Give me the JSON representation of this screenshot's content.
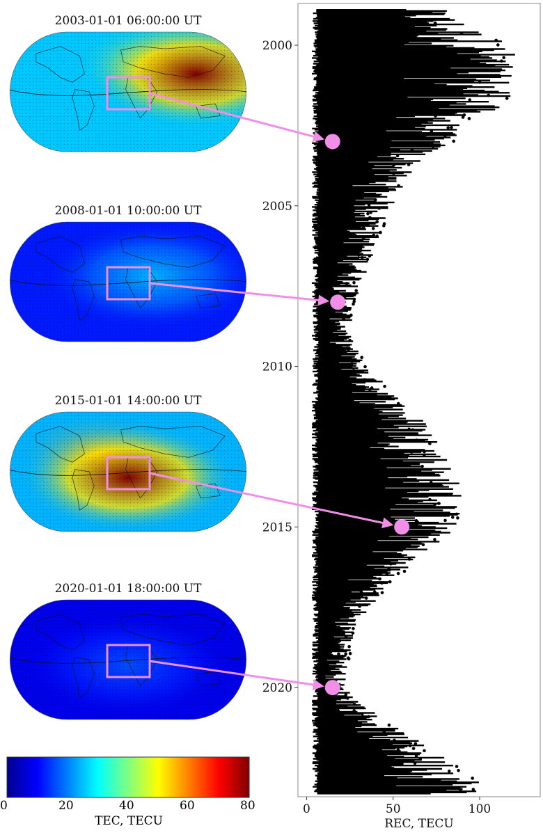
{
  "maps": [
    {
      "title": "2003-01-01 06:00:00 UT",
      "hot": [
        0.78,
        0.35,
        1.0
      ],
      "hot2": [
        0.62,
        0.25,
        0.6
      ],
      "base": 0.32
    },
    {
      "title": "2008-01-01 10:00:00 UT",
      "hot": [
        0.6,
        0.45,
        0.3
      ],
      "hot2": [
        0.35,
        0.5,
        0.15
      ],
      "base": 0.15
    },
    {
      "title": "2015-01-01 14:00:00 UT",
      "hot": [
        0.5,
        0.55,
        1.0
      ],
      "hot2": [
        0.38,
        0.35,
        0.7
      ],
      "base": 0.3
    },
    {
      "title": "2020-01-01 18:00:00 UT",
      "hot": [
        0.5,
        0.55,
        0.2
      ],
      "hot2": [
        0.3,
        0.4,
        0.12
      ],
      "base": 0.1
    }
  ],
  "colorbar": {
    "label": "TEC, TECU",
    "ticks": [
      "0",
      "20",
      "40",
      "60",
      "80"
    ],
    "range": [
      0,
      80
    ]
  },
  "chart_data": {
    "type": "scatter",
    "xlabel": "REC, TECU",
    "ylabel": "",
    "xlim": [
      -5,
      135
    ],
    "ylim": [
      1998.7,
      2023.4
    ],
    "y_inverted": true,
    "x_ticks": [
      "0",
      "50",
      "100"
    ],
    "y_ticks": [
      "2000",
      "2005",
      "2010",
      "2015",
      "2020"
    ],
    "x_tick_values": [
      0,
      50,
      100
    ],
    "y_tick_values": [
      2000,
      2005,
      2010,
      2015,
      2020
    ],
    "series_color": "#000000",
    "envelope_max": [
      [
        1998.9,
        80
      ],
      [
        1999.5,
        100
      ],
      [
        2000.0,
        120
      ],
      [
        2000.5,
        124
      ],
      [
        2001.0,
        118
      ],
      [
        2001.5,
        125
      ],
      [
        2002.0,
        110
      ],
      [
        2002.5,
        90
      ],
      [
        2003.0,
        85
      ],
      [
        2003.5,
        70
      ],
      [
        2004.0,
        60
      ],
      [
        2005.0,
        50
      ],
      [
        2006.0,
        42
      ],
      [
        2007.0,
        36
      ],
      [
        2008.0,
        28
      ],
      [
        2009.0,
        25
      ],
      [
        2010.0,
        35
      ],
      [
        2011.0,
        55
      ],
      [
        2012.0,
        75
      ],
      [
        2013.0,
        85
      ],
      [
        2014.0,
        92
      ],
      [
        2015.0,
        88
      ],
      [
        2016.0,
        65
      ],
      [
        2017.0,
        45
      ],
      [
        2018.0,
        30
      ],
      [
        2019.0,
        25
      ],
      [
        2020.0,
        22
      ],
      [
        2021.0,
        45
      ],
      [
        2022.0,
        75
      ],
      [
        2023.0,
        105
      ],
      [
        2023.3,
        100
      ]
    ],
    "highlighted_points": [
      {
        "date": 2003.0,
        "rec": 15
      },
      {
        "date": 2008.0,
        "rec": 18
      },
      {
        "date": 2015.0,
        "rec": 55
      },
      {
        "date": 2020.0,
        "rec": 15
      }
    ],
    "highlight_color": "#f08ee8"
  },
  "colors": {
    "annotation": "#f08ee8",
    "box": "#f08ee8"
  }
}
